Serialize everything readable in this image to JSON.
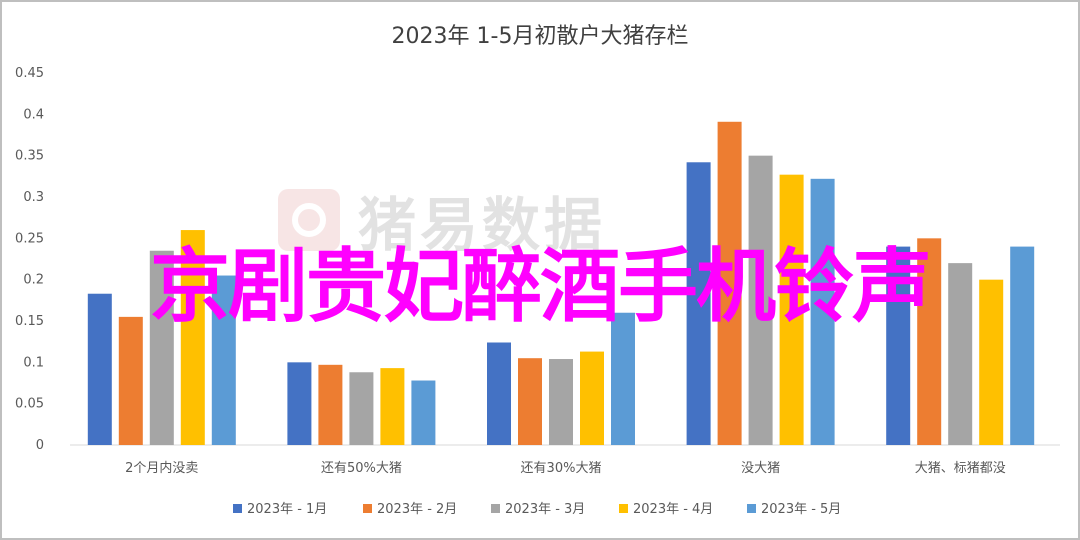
{
  "chart_data": {
    "type": "bar",
    "title": "2023年 1-5月初散户大猪存栏",
    "categories": [
      "2个月内没卖",
      "还有50%大猪",
      "还有30%大猪",
      "没大猪",
      "大猪、标猪都没"
    ],
    "series": [
      {
        "name": "2023年 - 1月",
        "color": "#4472c4",
        "values": [
          0.183,
          0.1,
          0.124,
          0.342,
          0.24
        ]
      },
      {
        "name": "2023年 - 2月",
        "color": "#ed7d31",
        "values": [
          0.155,
          0.097,
          0.105,
          0.391,
          0.25
        ]
      },
      {
        "name": "2023年 - 3月",
        "color": "#a5a5a5",
        "values": [
          0.235,
          0.088,
          0.104,
          0.35,
          0.22
        ]
      },
      {
        "name": "2023年 - 4月",
        "color": "#ffc000",
        "values": [
          0.26,
          0.093,
          0.113,
          0.327,
          0.2
        ]
      },
      {
        "name": "2023年 - 5月",
        "color": "#5b9bd5",
        "values": [
          0.205,
          0.078,
          0.16,
          0.322,
          0.24
        ]
      }
    ],
    "ylim": [
      0,
      0.45
    ],
    "yticks": [
      "0",
      "0.05",
      "0.1",
      "0.15",
      "0.2",
      "0.25",
      "0.3",
      "0.35",
      "0.4",
      "0.45"
    ],
    "grid": false,
    "legend": "bottom"
  },
  "watermark": {
    "text": "猪易数据"
  },
  "overlay": {
    "text": "京剧贵妃醉酒手机铃声"
  }
}
